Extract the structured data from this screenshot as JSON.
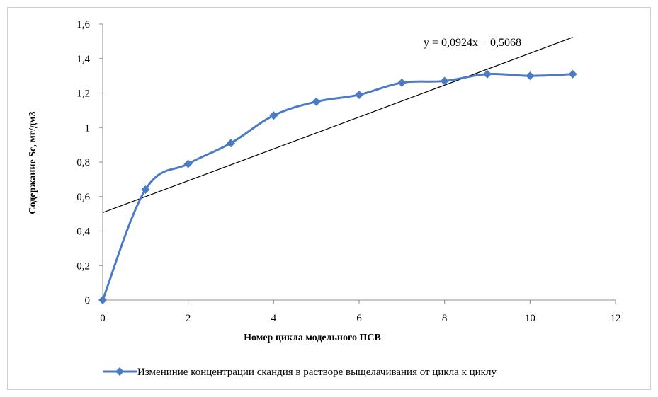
{
  "chart_data": {
    "type": "line",
    "x_label": "Номер цикла модельного ПСВ",
    "y_label": "Содержание Sc, мг/дм3",
    "x_ticks": [
      "0",
      "2",
      "4",
      "6",
      "8",
      "10",
      "12"
    ],
    "y_ticks": [
      "0",
      "0,2",
      "0,4",
      "0,6",
      "0,8",
      "1",
      "1,2",
      "1,4",
      "1,6"
    ],
    "xlim": [
      0,
      12
    ],
    "ylim": [
      0,
      1.6
    ],
    "grid": false,
    "legend_position": "bottom",
    "series": [
      {
        "name": "Измениние концентрации скандия в растворе выщелачивания от цикла к циклу",
        "color": "#4a7bc4",
        "marker": "diamond",
        "x": [
          0,
          1,
          2,
          3,
          4,
          5,
          6,
          7,
          8,
          9,
          10,
          11
        ],
        "y": [
          0,
          0.64,
          0.79,
          0.91,
          1.07,
          1.15,
          1.19,
          1.26,
          1.27,
          1.31,
          1.3,
          1.31
        ]
      }
    ],
    "trendline": {
      "equation": "y = 0,0924x + 0,5068",
      "slope": 0.0924,
      "intercept": 0.5068,
      "x_range": [
        0,
        11
      ],
      "color": "#000000"
    }
  }
}
